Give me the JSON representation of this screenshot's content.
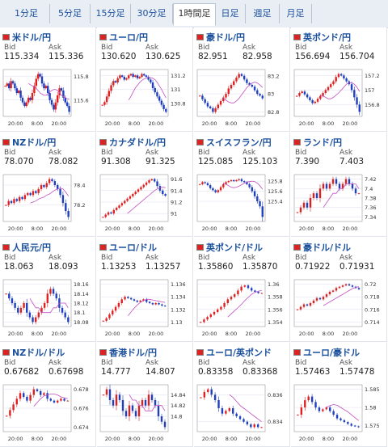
{
  "tabs": [
    {
      "label": "1分足",
      "active": false
    },
    {
      "label": "5分足",
      "active": false
    },
    {
      "label": "15分足",
      "active": false
    },
    {
      "label": "30分足",
      "active": false
    },
    {
      "label": "1時間足",
      "active": true
    },
    {
      "label": "日足",
      "active": false
    },
    {
      "label": "週足",
      "active": false
    },
    {
      "label": "月足",
      "active": false
    }
  ],
  "labels": {
    "bid": "Bid",
    "ask": "Ask"
  },
  "colors": {
    "up": "#e02020",
    "down": "#1f3fbf",
    "ma": "#c04fc0",
    "link": "#1a4f9c"
  },
  "cards": [
    {
      "title": "米ドル/円",
      "flag_icon": "us-flag-icon",
      "bid": "115.334",
      "ask": "115.336",
      "yticks": [
        "115.8",
        "115.6"
      ],
      "xticks": [
        "20:00",
        "8:00",
        "20:00"
      ],
      "chart_data": {
        "type": "candlestick",
        "closes": [
          115.72,
          115.74,
          115.7,
          115.76,
          115.74,
          115.7,
          115.66,
          115.68,
          115.62,
          115.58,
          115.55,
          115.58,
          115.62,
          115.6,
          115.66,
          115.72,
          115.78,
          115.82,
          115.8,
          115.74,
          115.7,
          115.72,
          115.66,
          115.6,
          115.56,
          115.52,
          115.58,
          115.64,
          115.7,
          115.68,
          115.62,
          115.58,
          115.55,
          115.5
        ],
        "ma": [
          115.74,
          115.73,
          115.72,
          115.71,
          115.7,
          115.68,
          115.66,
          115.65,
          115.64,
          115.64,
          115.65,
          115.67,
          115.68,
          115.69,
          115.69,
          115.68,
          115.66,
          115.64,
          115.63,
          115.62,
          115.61,
          115.61
        ]
      }
    },
    {
      "title": "ユーロ/円",
      "flag_icon": "eu-flag-icon",
      "bid": "130.620",
      "ask": "130.625",
      "yticks": [
        "131.2",
        "131",
        "130.8"
      ],
      "xticks": [
        "20:00",
        "8:00",
        "20:00"
      ],
      "chart_data": {
        "type": "candlestick",
        "closes": [
          130.78,
          130.82,
          130.9,
          130.98,
          131.06,
          131.12,
          131.1,
          131.16,
          131.2,
          131.18,
          131.14,
          131.16,
          131.2,
          131.22,
          131.18,
          131.2,
          131.16,
          131.18,
          131.22,
          131.2,
          131.18,
          131.14,
          131.1,
          131.02,
          130.96,
          130.9,
          130.84,
          130.78,
          130.72,
          130.68
        ],
        "ma": [
          130.85,
          130.9,
          130.96,
          131.02,
          131.06,
          131.1,
          131.13,
          131.15,
          131.16,
          131.17,
          131.17,
          131.16,
          131.14,
          131.1,
          131.05,
          131.0,
          130.94,
          130.88
        ]
      }
    },
    {
      "title": "豪ドル/円",
      "flag_icon": "au-flag-icon",
      "bid": "82.951",
      "ask": "82.958",
      "yticks": [
        "83.2",
        "83",
        "82.8"
      ],
      "xticks": [
        "20:00",
        "8:00",
        "20:00"
      ],
      "chart_data": {
        "type": "candlestick",
        "closes": [
          82.98,
          82.94,
          82.9,
          82.86,
          82.84,
          82.8,
          82.84,
          82.88,
          82.92,
          82.96,
          83.0,
          83.06,
          83.1,
          83.14,
          83.18,
          83.22,
          83.2,
          83.16,
          83.12,
          83.1,
          83.08,
          83.04,
          83.0,
          82.98,
          82.95
        ],
        "ma": [
          82.95,
          82.93,
          82.91,
          82.9,
          82.9,
          82.92,
          82.95,
          82.99,
          83.03,
          83.07,
          83.1,
          83.12,
          83.13,
          83.12,
          83.1,
          83.07
        ]
      }
    },
    {
      "title": "英ポンド/円",
      "flag_icon": "uk-flag-icon",
      "bid": "156.694",
      "ask": "156.704",
      "yticks": [
        "157.2",
        "157",
        "156.8"
      ],
      "xticks": [
        "20:00",
        "8:00",
        "20:00"
      ],
      "chart_data": {
        "type": "candlestick",
        "closes": [
          156.92,
          156.96,
          156.98,
          156.94,
          156.9,
          156.86,
          156.82,
          156.84,
          156.88,
          156.92,
          156.96,
          157.0,
          157.04,
          157.08,
          157.12,
          157.18,
          157.22,
          157.2,
          157.16,
          157.12,
          157.08,
          157.0,
          156.9,
          156.8,
          156.7
        ],
        "ma": [
          156.93,
          156.92,
          156.9,
          156.88,
          156.88,
          156.9,
          156.93,
          156.96,
          157.0,
          157.04,
          157.08,
          157.1,
          157.1,
          157.08,
          157.04,
          156.98
        ]
      }
    },
    {
      "title": "NZドル/円",
      "flag_icon": "nz-flag-icon",
      "bid": "78.070",
      "ask": "78.082",
      "yticks": [
        "78.4",
        "78.2"
      ],
      "xticks": [
        "20:00",
        "8:00",
        "20:00"
      ],
      "chart_data": {
        "type": "candlestick",
        "closes": [
          78.2,
          78.24,
          78.22,
          78.26,
          78.24,
          78.28,
          78.26,
          78.3,
          78.32,
          78.3,
          78.34,
          78.32,
          78.36,
          78.4,
          78.38,
          78.42,
          78.46,
          78.44,
          78.4,
          78.36,
          78.3,
          78.22,
          78.14,
          78.08
        ],
        "ma": [
          78.22,
          78.23,
          78.24,
          78.26,
          78.27,
          78.28,
          78.3,
          78.31,
          78.33,
          78.35,
          78.36,
          78.37,
          78.36,
          78.33,
          78.29
        ]
      }
    },
    {
      "title": "カナダドル/円",
      "flag_icon": "ca-flag-icon",
      "bid": "91.308",
      "ask": "91.325",
      "yticks": [
        "91.6",
        "91.4",
        "91.2",
        "91"
      ],
      "xticks": [
        "20:00",
        "8:00",
        "20:00"
      ],
      "chart_data": {
        "type": "candlestick",
        "closes": [
          90.94,
          90.98,
          91.02,
          91.0,
          91.06,
          91.1,
          91.14,
          91.18,
          91.22,
          91.26,
          91.3,
          91.34,
          91.38,
          91.42,
          91.46,
          91.5,
          91.54,
          91.58,
          91.6,
          91.56,
          91.48,
          91.4,
          91.34,
          91.31
        ],
        "ma": [
          91.0,
          91.04,
          91.08,
          91.12,
          91.16,
          91.2,
          91.24,
          91.28,
          91.32,
          91.36,
          91.4,
          91.43,
          91.45,
          91.46,
          91.45
        ]
      }
    },
    {
      "title": "スイスフラン/円",
      "flag_icon": "ch-flag-icon",
      "bid": "125.085",
      "ask": "125.103",
      "yticks": [
        "125.8",
        "125.6",
        "125.4"
      ],
      "xticks": [
        "20:00",
        "8:00",
        "20:00"
      ],
      "chart_data": {
        "type": "candlestick",
        "closes": [
          125.74,
          125.78,
          125.76,
          125.72,
          125.66,
          125.62,
          125.58,
          125.62,
          125.68,
          125.74,
          125.78,
          125.8,
          125.82,
          125.8,
          125.82,
          125.84,
          125.8,
          125.78,
          125.74,
          125.68,
          125.6,
          125.5,
          125.4,
          125.3,
          125.09
        ],
        "ma": [
          125.76,
          125.74,
          125.71,
          125.68,
          125.67,
          125.68,
          125.7,
          125.73,
          125.76,
          125.78,
          125.79,
          125.8,
          125.79,
          125.76,
          125.71,
          125.64
        ]
      }
    },
    {
      "title": "ランド/円",
      "flag_icon": "za-flag-icon",
      "bid": "7.390",
      "ask": "7.403",
      "yticks": [
        "7.42",
        "7.4",
        "7.38",
        "7.36",
        "7.34"
      ],
      "xticks": [
        "20:00",
        "8:00",
        "20:00"
      ],
      "chart_data": {
        "type": "candlestick",
        "closes": [
          7.35,
          7.36,
          7.37,
          7.36,
          7.38,
          7.39,
          7.38,
          7.4,
          7.41,
          7.4,
          7.41,
          7.42,
          7.41,
          7.4,
          7.41,
          7.42,
          7.41,
          7.4,
          7.39,
          7.39
        ],
        "ma": [
          7.36,
          7.37,
          7.38,
          7.39,
          7.39,
          7.4,
          7.4,
          7.41,
          7.41,
          7.41,
          7.41,
          7.4
        ]
      }
    },
    {
      "title": "人民元/円",
      "flag_icon": "cn-flag-icon",
      "bid": "18.063",
      "ask": "18.093",
      "yticks": [
        "18.16",
        "18.14",
        "18.12",
        "18.1",
        "18.08"
      ],
      "xticks": [
        "20:00",
        "8:00",
        "20:00"
      ],
      "chart_data": {
        "type": "candlestick",
        "closes": [
          18.14,
          18.13,
          18.12,
          18.11,
          18.1,
          18.11,
          18.12,
          18.1,
          18.09,
          18.08,
          18.09,
          18.1,
          18.11,
          18.12,
          18.14,
          18.15,
          18.14,
          18.13,
          18.11,
          18.1,
          18.09,
          18.08
        ],
        "ma": [
          18.13,
          18.12,
          18.11,
          18.11,
          18.1,
          18.1,
          18.1,
          18.1,
          18.11,
          18.11,
          18.12,
          18.12,
          18.12,
          18.11
        ]
      }
    },
    {
      "title": "ユーロ/ドル",
      "flag_icon": "eu-flag-icon",
      "bid": "1.13253",
      "ask": "1.13257",
      "yticks": [
        "1.136",
        "1.134",
        "1.132",
        "1.13"
      ],
      "xticks": [
        "20:00",
        "8:00",
        "20:00"
      ],
      "chart_data": {
        "type": "candlestick",
        "closes": [
          1.1302,
          1.1306,
          1.1312,
          1.1318,
          1.1324,
          1.133,
          1.1336,
          1.134,
          1.1338,
          1.1336,
          1.1334,
          1.1332,
          1.1334,
          1.1336,
          1.1332,
          1.133,
          1.1328,
          1.133,
          1.1328,
          1.1326,
          1.1325
        ],
        "ma": [
          1.131,
          1.1316,
          1.1322,
          1.1327,
          1.1331,
          1.1334,
          1.1336,
          1.1336,
          1.1335,
          1.1334,
          1.1333,
          1.1332,
          1.1331
        ]
      }
    },
    {
      "title": "英ポンド/ドル",
      "flag_icon": "uk-flag-icon",
      "bid": "1.35860",
      "ask": "1.35870",
      "yticks": [
        "1.36",
        "1.358",
        "1.356",
        "1.354"
      ],
      "xticks": [
        "20:00",
        "8:00",
        "20:00"
      ],
      "chart_data": {
        "type": "candlestick",
        "closes": [
          1.354,
          1.3544,
          1.3548,
          1.3552,
          1.3556,
          1.356,
          1.3564,
          1.357,
          1.3576,
          1.358,
          1.3584,
          1.359,
          1.3596,
          1.3598,
          1.3594,
          1.359,
          1.3588,
          1.3586,
          1.3586
        ],
        "ma": [
          1.3548,
          1.3553,
          1.3558,
          1.3563,
          1.3568,
          1.3574,
          1.3579,
          1.3584,
          1.3587,
          1.3589,
          1.359
        ]
      }
    },
    {
      "title": "豪ドル/ドル",
      "flag_icon": "au-flag-icon",
      "bid": "0.71922",
      "ask": "0.71931",
      "yticks": [
        "0.72",
        "0.718",
        "0.716",
        "0.714"
      ],
      "xticks": [
        "20:00",
        "8:00",
        "20:00"
      ],
      "chart_data": {
        "type": "candlestick",
        "closes": [
          0.716,
          0.7164,
          0.7168,
          0.7166,
          0.717,
          0.7174,
          0.7178,
          0.7176,
          0.718,
          0.7184,
          0.7188,
          0.719,
          0.7194,
          0.7196,
          0.7198,
          0.72,
          0.7198,
          0.7196,
          0.7194,
          0.7192
        ],
        "ma": [
          0.7166,
          0.7169,
          0.7172,
          0.7175,
          0.7178,
          0.7181,
          0.7184,
          0.7187,
          0.719,
          0.7193,
          0.7195,
          0.7196
        ]
      }
    },
    {
      "title": "NZドル/ドル",
      "flag_icon": "nz-flag-icon",
      "bid": "0.67682",
      "ask": "0.67698",
      "yticks": [
        "0.678",
        "0.676",
        "0.674"
      ],
      "xticks": [
        "20:00",
        "8:00",
        "20:00"
      ],
      "chart_data": {
        "type": "candlestick",
        "closes": [
          0.6752,
          0.6758,
          0.6764,
          0.677,
          0.6776,
          0.6772,
          0.6768,
          0.6774,
          0.678,
          0.6778,
          0.6774,
          0.6776,
          0.677,
          0.6768,
          0.6766,
          0.6768,
          0.677,
          0.6768,
          0.6768
        ],
        "ma": [
          0.6762,
          0.6766,
          0.677,
          0.6773,
          0.6774,
          0.6775,
          0.6775,
          0.6774,
          0.6772,
          0.6771,
          0.677
        ]
      }
    },
    {
      "title": "香港ドル/円",
      "flag_icon": "hk-flag-icon",
      "bid": "14.777",
      "ask": "14.807",
      "yticks": [
        "14.84",
        "14.82",
        "14.8"
      ],
      "xticks": [
        "20:00",
        "8:00",
        "20:00"
      ],
      "chart_data": {
        "type": "candlestick",
        "closes": [
          14.84,
          14.85,
          14.83,
          14.82,
          14.84,
          14.83,
          14.81,
          14.8,
          14.82,
          14.81,
          14.8,
          14.82,
          14.83,
          14.82,
          14.84,
          14.83,
          14.82,
          14.8,
          14.79,
          14.78
        ],
        "ma": [
          14.84,
          14.83,
          14.83,
          14.82,
          14.82,
          14.81,
          14.81,
          14.81,
          14.82,
          14.82,
          14.82,
          14.81
        ]
      }
    },
    {
      "title": "ユーロ/英ポンド",
      "flag_icon": "eu-flag-icon",
      "bid": "0.83358",
      "ask": "0.83368",
      "yticks": [
        "0.836",
        "0.834"
      ],
      "xticks": [
        "20:00",
        "8:00",
        "20:00"
      ],
      "chart_data": {
        "type": "candlestick",
        "closes": [
          0.8358,
          0.8362,
          0.8364,
          0.836,
          0.8356,
          0.835,
          0.8346,
          0.8348,
          0.835,
          0.8346,
          0.8344,
          0.8342,
          0.834,
          0.8338,
          0.8336,
          0.8338,
          0.8336,
          0.8336
        ],
        "ma": [
          0.836,
          0.8358,
          0.8355,
          0.8352,
          0.835,
          0.8348,
          0.8346,
          0.8344,
          0.8342,
          0.834
        ]
      }
    },
    {
      "title": "ユーロ/豪ドル",
      "flag_icon": "eu-flag-icon",
      "bid": "1.57463",
      "ask": "1.57478",
      "yticks": [
        "1.585",
        "1.58",
        "1.575"
      ],
      "xticks": [
        "20:00",
        "8:00",
        "20:00"
      ],
      "chart_data": {
        "type": "candlestick",
        "closes": [
          1.578,
          1.58,
          1.582,
          1.583,
          1.5815,
          1.58,
          1.579,
          1.5795,
          1.58,
          1.579,
          1.578,
          1.577,
          1.5765,
          1.576,
          1.5755,
          1.575,
          1.5748,
          1.5746
        ],
        "ma": [
          1.58,
          1.5805,
          1.5808,
          1.5806,
          1.58,
          1.5794,
          1.5788,
          1.578,
          1.5772,
          1.5764
        ]
      }
    }
  ]
}
